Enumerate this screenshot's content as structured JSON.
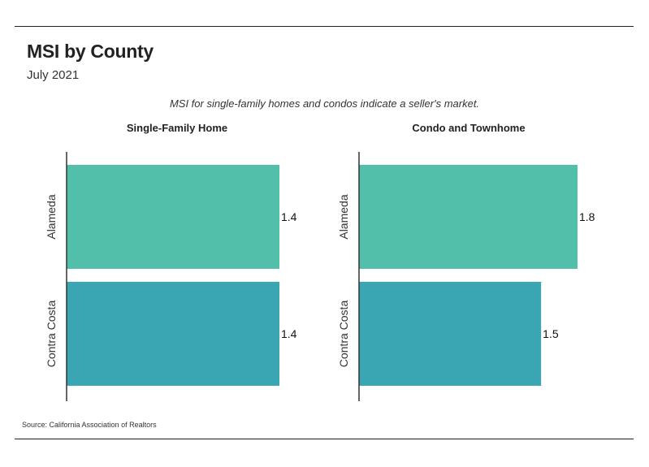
{
  "title": "MSI by County",
  "subtitle": "July 2021",
  "note": "MSI for single-family homes and condos indicate a seller's market.",
  "source": "Source:  California Association of Realtors",
  "colors": {
    "bar_alameda": "#52bfaa",
    "bar_contra_costa": "#3aa6b3",
    "axis": "#333333"
  },
  "chart_data": [
    {
      "type": "bar",
      "orientation": "horizontal",
      "title": "Single-Family Home",
      "categories": [
        "Alameda",
        "Contra Costa"
      ],
      "values": [
        1.4,
        1.4
      ],
      "value_labels": [
        "1.4",
        "1.4"
      ],
      "xlim": [
        0,
        1.8
      ]
    },
    {
      "type": "bar",
      "orientation": "horizontal",
      "title": "Condo and Townhome",
      "categories": [
        "Alameda",
        "Contra Costa"
      ],
      "values": [
        1.8,
        1.5
      ],
      "value_labels": [
        "1.8",
        "1.5"
      ],
      "xlim": [
        0,
        1.8
      ]
    }
  ]
}
